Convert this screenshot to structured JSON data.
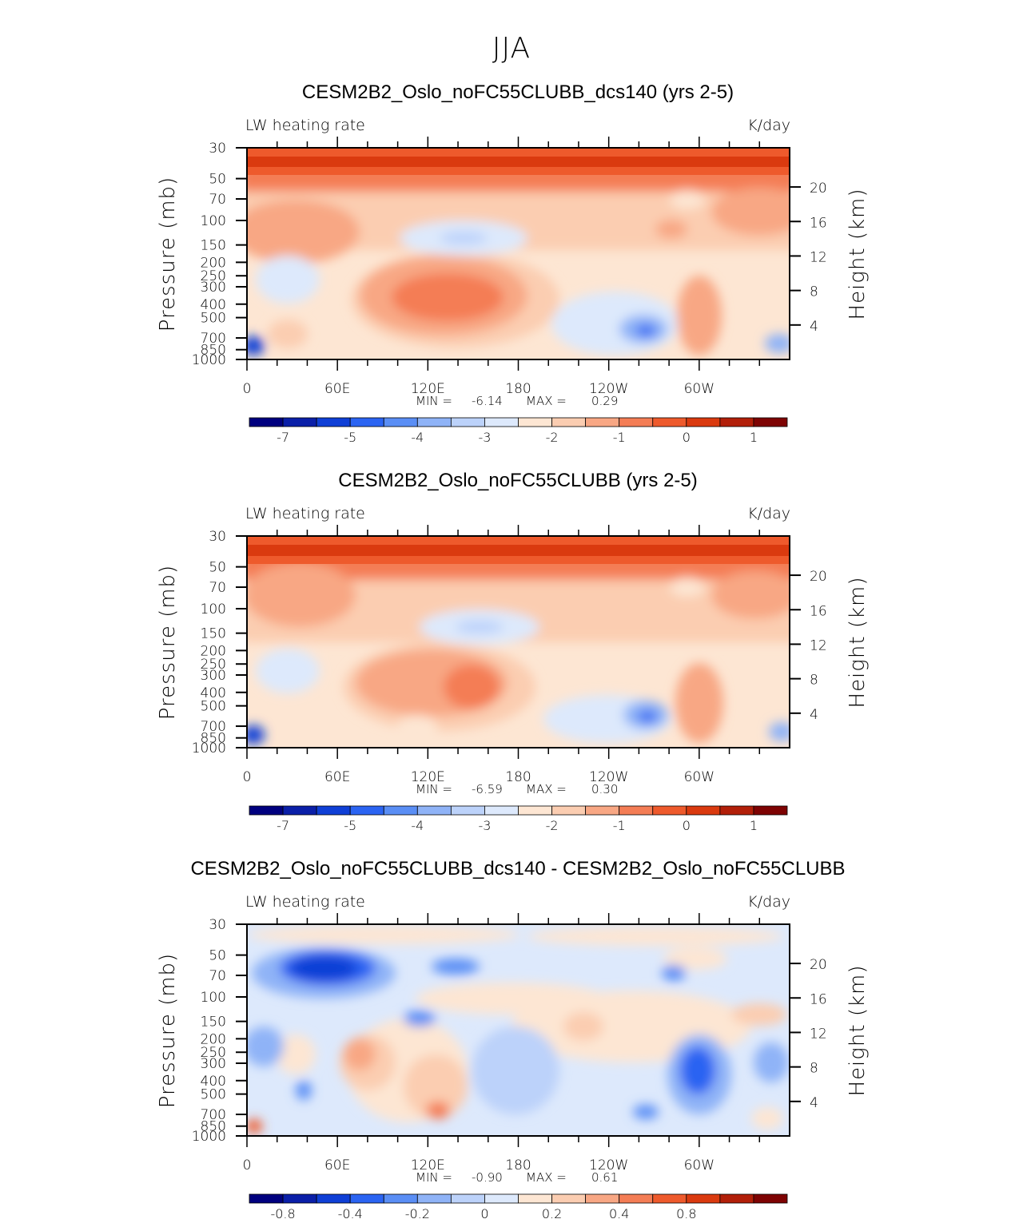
{
  "figure": {
    "title": "JJA"
  },
  "chart_data": [
    {
      "type": "heatmap",
      "title": "CESM2B2_Oslo_noFC55CLUBB_dcs140 (yrs 2-5)",
      "left_label": "LW heating rate",
      "right_label": "K/day",
      "ylabel": "Pressure (mb)",
      "y2label": "Height (km)",
      "x_ticks": [
        "0",
        "60E",
        "120E",
        "180",
        "120W",
        "60W"
      ],
      "x_lon": [
        0,
        60,
        120,
        180,
        240,
        300
      ],
      "xlim": [
        0,
        360
      ],
      "y_ticks": [
        "30",
        "50",
        "70",
        "100",
        "150",
        "200",
        "250",
        "300",
        "400",
        "500",
        "700",
        "850",
        "1000"
      ],
      "y_pressure": [
        30,
        50,
        70,
        100,
        150,
        200,
        250,
        300,
        400,
        500,
        700,
        850,
        1000
      ],
      "ylim": [
        1000,
        30
      ],
      "y2_ticks": [
        "20",
        "16",
        "12",
        "8",
        "4"
      ],
      "y2_km": [
        20,
        16,
        12,
        8,
        4
      ],
      "min_label": "MIN =",
      "min": "-6.14",
      "max_label": "MAX =",
      "max": "0.29",
      "colorbar_ticks": [
        "-7",
        "-5",
        "-4",
        "-3",
        "-2",
        "-1",
        "0",
        "1"
      ],
      "colorbar_tick_idx": [
        1,
        3,
        5,
        7,
        9,
        11,
        13,
        15
      ]
    },
    {
      "type": "heatmap",
      "title": "CESM2B2_Oslo_noFC55CLUBB (yrs 2-5)",
      "left_label": "LW heating rate",
      "right_label": "K/day",
      "ylabel": "Pressure (mb)",
      "y2label": "Height (km)",
      "x_ticks": [
        "0",
        "60E",
        "120E",
        "180",
        "120W",
        "60W"
      ],
      "x_lon": [
        0,
        60,
        120,
        180,
        240,
        300
      ],
      "xlim": [
        0,
        360
      ],
      "y_ticks": [
        "30",
        "50",
        "70",
        "100",
        "150",
        "200",
        "250",
        "300",
        "400",
        "500",
        "700",
        "850",
        "1000"
      ],
      "y_pressure": [
        30,
        50,
        70,
        100,
        150,
        200,
        250,
        300,
        400,
        500,
        700,
        850,
        1000
      ],
      "ylim": [
        1000,
        30
      ],
      "y2_ticks": [
        "20",
        "16",
        "12",
        "8",
        "4"
      ],
      "y2_km": [
        20,
        16,
        12,
        8,
        4
      ],
      "min_label": "MIN =",
      "min": "-6.59",
      "max_label": "MAX =",
      "max": "0.30",
      "colorbar_ticks": [
        "-7",
        "-5",
        "-4",
        "-3",
        "-2",
        "-1",
        "0",
        "1"
      ],
      "colorbar_tick_idx": [
        1,
        3,
        5,
        7,
        9,
        11,
        13,
        15
      ]
    },
    {
      "type": "heatmap",
      "title": "CESM2B2_Oslo_noFC55CLUBB_dcs140 - CESM2B2_Oslo_noFC55CLUBB",
      "left_label": "LW heating rate",
      "right_label": "K/day",
      "ylabel": "Pressure (mb)",
      "y2label": "Height (km)",
      "x_ticks": [
        "0",
        "60E",
        "120E",
        "180",
        "120W",
        "60W"
      ],
      "x_lon": [
        0,
        60,
        120,
        180,
        240,
        300
      ],
      "xlim": [
        0,
        360
      ],
      "y_ticks": [
        "30",
        "50",
        "70",
        "100",
        "150",
        "200",
        "250",
        "300",
        "400",
        "500",
        "700",
        "850",
        "1000"
      ],
      "y_pressure": [
        30,
        50,
        70,
        100,
        150,
        200,
        250,
        300,
        400,
        500,
        700,
        850,
        1000
      ],
      "ylim": [
        1000,
        30
      ],
      "y2_ticks": [
        "20",
        "16",
        "12",
        "8",
        "4"
      ],
      "y2_km": [
        20,
        16,
        12,
        8,
        4
      ],
      "min_label": "MIN =",
      "min": "-0.90",
      "max_label": "MAX =",
      "max": "0.61",
      "colorbar_ticks": [
        "-0.8",
        "-0.4",
        "-0.2",
        "0",
        "0.2",
        "0.4",
        "0.8"
      ],
      "colorbar_tick_idx": [
        1,
        3,
        5,
        7,
        9,
        11,
        13
      ]
    }
  ],
  "colors": {
    "palette": [
      "#00007f",
      "#0a1fa8",
      "#0f3fd6",
      "#2b64f2",
      "#5a8ef5",
      "#8fb3f7",
      "#bcd2fa",
      "#dde9fc",
      "#fde6d3",
      "#fbcdb1",
      "#f8a784",
      "#f47d55",
      "#ee5a2c",
      "#da3a0f",
      "#b21f09",
      "#7e0303"
    ]
  }
}
